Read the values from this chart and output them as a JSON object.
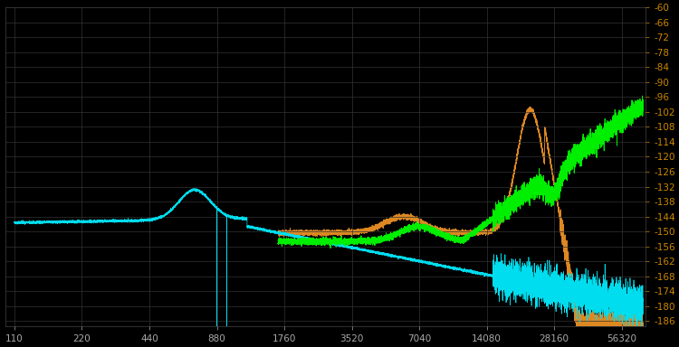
{
  "background_color": "#000000",
  "grid_color": "#333333",
  "x_ticks": [
    110,
    220,
    440,
    880,
    1760,
    3520,
    7040,
    14080,
    28160,
    56320
  ],
  "x_min": 100,
  "x_max": 72000,
  "y_min": -188,
  "y_max": -60,
  "y_ticks": [
    -60,
    -66,
    -72,
    -78,
    -84,
    -90,
    -96,
    -102,
    -108,
    -114,
    -120,
    -126,
    -132,
    -138,
    -144,
    -150,
    -156,
    -162,
    -168,
    -174,
    -180,
    -186
  ],
  "cyan_color": "#00ddee",
  "orange_color": "#dd8822",
  "green_color": "#00ee00",
  "ylabel_color": "#cc8800",
  "xlabel_color": "#aaaaaa"
}
